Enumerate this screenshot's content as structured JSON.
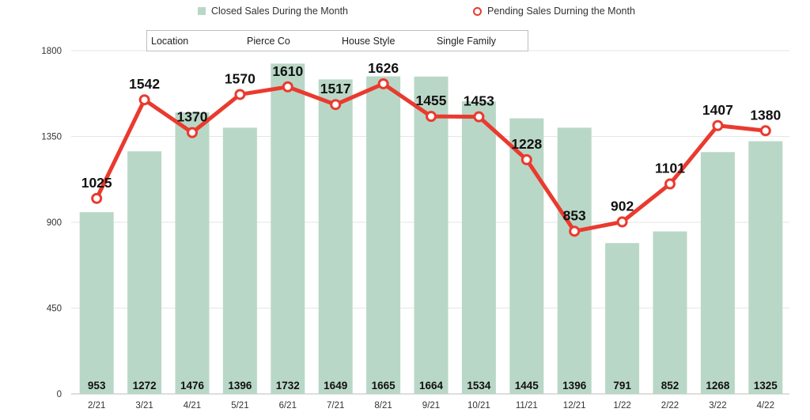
{
  "legend": {
    "closed_label": "Closed Sales During the Month",
    "pending_label": "Pending Sales Durning the Month"
  },
  "filters": {
    "location_label": "Location",
    "location_value": "Pierce Co",
    "style_label": "House Style",
    "style_value": "Single Family"
  },
  "colors": {
    "bar": "#b9d7c6",
    "line": "#ea3a2e",
    "grid": "#e6e6e6"
  },
  "chart_data": {
    "type": "bar",
    "categories": [
      "2/21",
      "3/21",
      "4/21",
      "5/21",
      "6/21",
      "7/21",
      "8/21",
      "9/21",
      "10/21",
      "11/21",
      "12/21",
      "1/22",
      "2/22",
      "3/22",
      "4/22"
    ],
    "series": [
      {
        "name": "Closed Sales During the Month",
        "type": "bar",
        "values": [
          953,
          1272,
          1476,
          1396,
          1732,
          1649,
          1665,
          1664,
          1534,
          1445,
          1396,
          791,
          852,
          1268,
          1325
        ]
      },
      {
        "name": "Pending Sales Durning the Month",
        "type": "line",
        "values": [
          1025,
          1542,
          1370,
          1570,
          1610,
          1517,
          1626,
          1455,
          1453,
          1228,
          853,
          902,
          1101,
          1407,
          1380
        ]
      }
    ],
    "yticks": [
      0,
      450,
      900,
      1350,
      1800
    ],
    "ylim": [
      0,
      1800
    ],
    "xlabel": "",
    "ylabel": ""
  }
}
